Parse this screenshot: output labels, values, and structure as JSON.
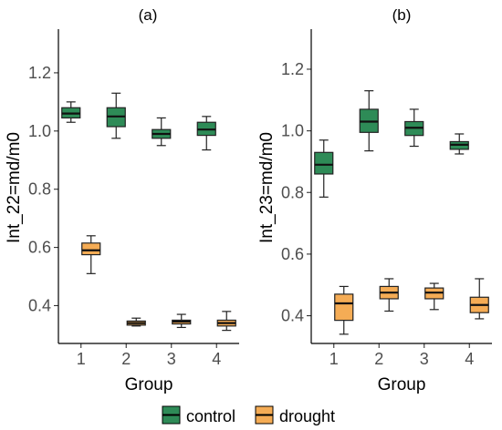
{
  "chart_data": [
    {
      "type": "box",
      "title": "(a)",
      "xlabel": "Group",
      "ylabel": "Int_22=md/m0",
      "categories": [
        "1",
        "2",
        "3",
        "4"
      ],
      "ylim": [
        0.27,
        1.35
      ],
      "yticks": [
        0.4,
        0.6,
        0.8,
        1.0,
        1.2
      ],
      "ytick_labels": [
        "0.4",
        "0.6",
        "0.8",
        "1.0",
        "1.2"
      ],
      "grid": false,
      "series": [
        {
          "name": "control",
          "color": "#2e8b57",
          "boxes": [
            {
              "min": 1.03,
              "q1": 1.045,
              "median": 1.06,
              "q3": 1.08,
              "max": 1.1
            },
            {
              "min": 0.975,
              "q1": 1.015,
              "median": 1.05,
              "q3": 1.08,
              "max": 1.13
            },
            {
              "min": 0.95,
              "q1": 0.975,
              "median": 0.99,
              "q3": 1.005,
              "max": 1.045
            },
            {
              "min": 0.935,
              "q1": 0.985,
              "median": 1.005,
              "q3": 1.03,
              "max": 1.05
            }
          ]
        },
        {
          "name": "drought",
          "color": "#f5ac55",
          "boxes": [
            {
              "min": 0.51,
              "q1": 0.575,
              "median": 0.59,
              "q3": 0.615,
              "max": 0.64
            },
            {
              "min": 0.33,
              "q1": 0.333,
              "median": 0.34,
              "q3": 0.347,
              "max": 0.357
            },
            {
              "min": 0.325,
              "q1": 0.337,
              "median": 0.345,
              "q3": 0.35,
              "max": 0.37
            },
            {
              "min": 0.315,
              "q1": 0.33,
              "median": 0.34,
              "q3": 0.35,
              "max": 0.38
            }
          ]
        }
      ]
    },
    {
      "type": "box",
      "title": "(b)",
      "xlabel": "Group",
      "ylabel": "Int_23=md/m0",
      "categories": [
        "1",
        "2",
        "3",
        "4"
      ],
      "ylim": [
        0.31,
        1.33
      ],
      "yticks": [
        0.4,
        0.6,
        0.8,
        1.0,
        1.2
      ],
      "ytick_labels": [
        "0.4",
        "0.6",
        "0.8",
        "1.0",
        "1.2"
      ],
      "grid": false,
      "series": [
        {
          "name": "control",
          "color": "#2e8b57",
          "boxes": [
            {
              "min": 0.785,
              "q1": 0.86,
              "median": 0.89,
              "q3": 0.93,
              "max": 0.97
            },
            {
              "min": 0.935,
              "q1": 0.995,
              "median": 1.03,
              "q3": 1.07,
              "max": 1.13
            },
            {
              "min": 0.95,
              "q1": 0.985,
              "median": 1.01,
              "q3": 1.03,
              "max": 1.07
            },
            {
              "min": 0.925,
              "q1": 0.94,
              "median": 0.955,
              "q3": 0.965,
              "max": 0.99
            }
          ]
        },
        {
          "name": "drought",
          "color": "#f5ac55",
          "boxes": [
            {
              "min": 0.34,
              "q1": 0.385,
              "median": 0.44,
              "q3": 0.47,
              "max": 0.495
            },
            {
              "min": 0.415,
              "q1": 0.455,
              "median": 0.475,
              "q3": 0.495,
              "max": 0.52
            },
            {
              "min": 0.42,
              "q1": 0.455,
              "median": 0.475,
              "q3": 0.49,
              "max": 0.505
            },
            {
              "min": 0.39,
              "q1": 0.41,
              "median": 0.435,
              "q3": 0.46,
              "max": 0.52
            }
          ]
        }
      ]
    }
  ],
  "legend": {
    "placement": "bottom",
    "items": [
      {
        "label": "control",
        "color": "#2e8b57"
      },
      {
        "label": "drought",
        "color": "#f5ac55"
      }
    ]
  }
}
